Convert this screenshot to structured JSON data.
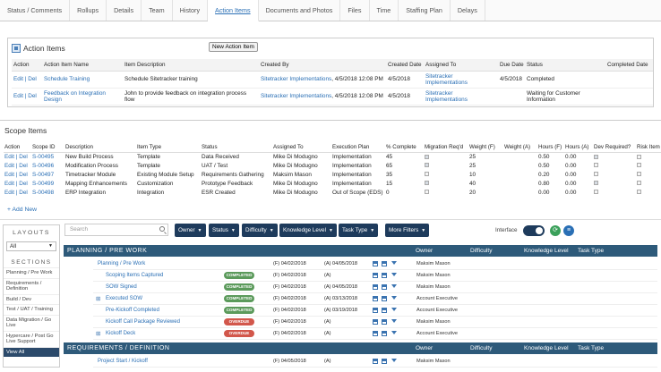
{
  "tabs": [
    "Status / Comments",
    "Rollups",
    "Details",
    "Team",
    "History",
    "Action Items",
    "Documents and Photos",
    "Files",
    "Time",
    "Staffing Plan",
    "Delays"
  ],
  "active_tab": "Action Items",
  "action_items": {
    "title": "Action Items",
    "new_button": "New Action Item",
    "columns": [
      "Action",
      "Action Item Name",
      "Item Description",
      "Created By",
      "Created Date",
      "Assigned To",
      "Due Date",
      "Status",
      "Completed Date"
    ],
    "rows": [
      {
        "action": "Edit | Del",
        "name": "Schedule Training",
        "description": "Schedule Sitetracker training",
        "created_by": "Sitetracker Implementations",
        "created_by_time": ", 4/5/2018 12:08 PM",
        "created_date": "4/5/2018",
        "assigned_to": "Sitetracker Implementations",
        "due_date": "4/5/2018",
        "status": "Completed",
        "completed_date": ""
      },
      {
        "action": "Edit | Del",
        "name": "Feedback on Integration Design",
        "description": "John to provide feedback on integration process flow",
        "created_by": "Sitetracker Implementations",
        "created_by_time": ", 4/5/2018 12:08 PM",
        "created_date": "4/5/2018",
        "assigned_to": "Sitetracker Implementations",
        "due_date": "",
        "status": "Waiting for Customer Information",
        "completed_date": ""
      }
    ]
  },
  "scope_items": {
    "title": "Scope Items",
    "columns": [
      "Action",
      "Scope ID",
      "Description",
      "Item Type",
      "Status",
      "Assigned To",
      "Execution Plan",
      "% Complete",
      "Migration Req'd",
      "Weight (F)",
      "Weight (A)",
      "Hours (F)",
      "Hours (A)",
      "Dev Required?",
      "Risk Item"
    ],
    "rows": [
      {
        "action": "Edit | Del",
        "id": "S-00495",
        "desc": "New Build Process",
        "type": "Template",
        "status": "Data Received",
        "assigned": "Mike Di Modugno",
        "plan": "Implementation",
        "pct": "45",
        "mig": true,
        "wf": "25",
        "wa": "",
        "hf": "0.50",
        "ha": "0.00",
        "dev": true,
        "risk": false
      },
      {
        "action": "Edit | Del",
        "id": "S-00496",
        "desc": "Modification Process",
        "type": "Template",
        "status": "UAT / Test",
        "assigned": "Mike Di Modugno",
        "plan": "Implementation",
        "pct": "65",
        "mig": true,
        "wf": "25",
        "wa": "",
        "hf": "0.50",
        "ha": "0.00",
        "dev": false,
        "risk": false
      },
      {
        "action": "Edit | Del",
        "id": "S-00497",
        "desc": "Timetracker Module",
        "type": "Existing Module Setup",
        "status": "Requirements Gathering",
        "assigned": "Maksim Mason",
        "plan": "Implementation",
        "pct": "35",
        "mig": false,
        "wf": "10",
        "wa": "",
        "hf": "0.20",
        "ha": "0.00",
        "dev": false,
        "risk": false
      },
      {
        "action": "Edit | Del",
        "id": "S-00499",
        "desc": "Mapping Enhancements",
        "type": "Customization",
        "status": "Prototype Feedback",
        "assigned": "Mike Di Modugno",
        "plan": "Implementation",
        "pct": "15",
        "mig": true,
        "wf": "40",
        "wa": "",
        "hf": "0.80",
        "ha": "0.00",
        "dev": true,
        "risk": false
      },
      {
        "action": "Edit | Del",
        "id": "S-00498",
        "desc": "ERP Integration",
        "type": "Integration",
        "status": "ESR Created",
        "assigned": "Mike Di Modugno",
        "plan": "Out of Scope (EDS)",
        "pct": "0",
        "mig": false,
        "wf": "20",
        "wa": "",
        "hf": "0.00",
        "ha": "0.00",
        "dev": false,
        "risk": false
      }
    ],
    "add_new": "+ Add New"
  },
  "layouts": {
    "title": "LAYOUTS",
    "selected": "All",
    "sections_title": "SECTIONS",
    "sections": [
      "Planning / Pre Work",
      "Requirements / Definition",
      "Build / Dev",
      "Test / UAT / Training",
      "Data Migration / Go Live",
      "Hypercare / Post Go Live Support",
      "View All"
    ],
    "active_section": "View All"
  },
  "toolbar": {
    "search_placeholder": "Search",
    "filters": [
      "Owner",
      "Status",
      "Difficulty",
      "Knowledge Level",
      "Task Type",
      "More Filters"
    ],
    "interface_label": "Interface"
  },
  "groups": [
    {
      "name": "PLANNING / PRE WORK",
      "columns": [
        "Owner",
        "Difficulty",
        "Knowledge Level",
        "Task Type"
      ],
      "rows": [
        {
          "name": "Planning / Pre Work",
          "indent": 0,
          "plus": false,
          "status": "",
          "d1": "(F) 04/02/2018",
          "d2": "(A) 04/05/2018",
          "owner": "Maksim Mason"
        },
        {
          "name": "Scoping Items Captured",
          "indent": 1,
          "plus": false,
          "status": "COMPLETED",
          "d1": "(F) 04/02/2018",
          "d2": "(A)",
          "owner": "Maksim Mason"
        },
        {
          "name": "SOW Signed",
          "indent": 1,
          "plus": false,
          "status": "COMPLETED",
          "d1": "(F) 04/02/2018",
          "d2": "(A) 04/05/2018",
          "owner": "Maksim Mason"
        },
        {
          "name": "Executed SOW",
          "indent": 1,
          "plus": true,
          "status": "COMPLETED",
          "d1": "(F) 04/02/2018",
          "d2": "(A) 03/13/2018",
          "owner": "Account Executive"
        },
        {
          "name": "Pre-Kickoff Completed",
          "indent": 1,
          "plus": false,
          "status": "COMPLETED",
          "d1": "(F) 04/02/2018",
          "d2": "(A) 03/19/2018",
          "owner": "Account Executive"
        },
        {
          "name": "Kickoff Call Package Reviewed",
          "indent": 1,
          "plus": false,
          "status": "OVERDUE",
          "d1": "(F) 04/02/2018",
          "d2": "(A)",
          "owner": "Maksim Mason"
        },
        {
          "name": "Kickoff Deck",
          "indent": 1,
          "plus": true,
          "status": "OVERDUE",
          "d1": "(F) 04/02/2018",
          "d2": "(A)",
          "owner": "Account Executive"
        }
      ]
    },
    {
      "name": "REQUIREMENTS / DEFINITION",
      "columns": [
        "Owner",
        "Difficulty",
        "Knowledge Level",
        "Task Type"
      ],
      "rows": [
        {
          "name": "Project Start / Kickoff",
          "indent": 0,
          "plus": false,
          "status": "",
          "d1": "(F) 04/05/2018",
          "d2": "(A)",
          "owner": "Maksim Mason"
        }
      ]
    }
  ]
}
